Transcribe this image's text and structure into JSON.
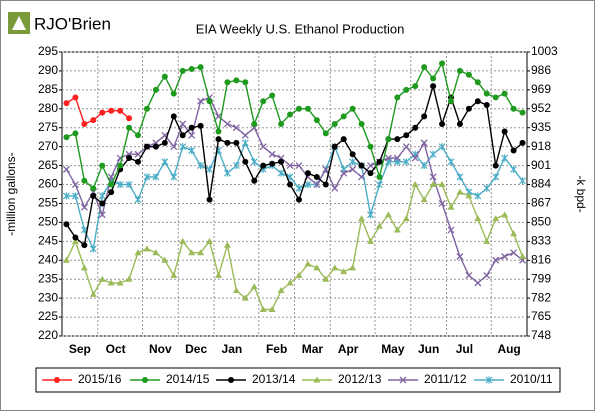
{
  "logo": "RJO'Brien",
  "chart_data": {
    "type": "line",
    "title": "EIA Weekly U.S. Ethanol Production",
    "ylabel": "-million gallons-",
    "y2label": "-k bpd-",
    "categories": [
      "Sep",
      null,
      null,
      null,
      "Oct",
      null,
      null,
      null,
      null,
      "Nov",
      null,
      null,
      null,
      "Dec",
      null,
      null,
      null,
      "Jan",
      null,
      null,
      null,
      null,
      "Feb",
      null,
      null,
      null,
      "Mar",
      null,
      null,
      null,
      "Apr",
      null,
      null,
      null,
      null,
      "May",
      null,
      null,
      null,
      "Jun",
      null,
      null,
      null,
      "Jul",
      null,
      null,
      null,
      null,
      "Aug",
      null,
      null,
      null
    ],
    "ylim": [
      220,
      295
    ],
    "yticks": [
      220,
      225,
      230,
      235,
      240,
      245,
      250,
      255,
      260,
      265,
      270,
      275,
      280,
      285,
      290,
      295
    ],
    "y2lim": [
      748,
      1003
    ],
    "y2ticks": [
      748,
      765,
      782,
      799,
      816,
      833,
      850,
      867,
      884,
      901,
      918,
      935,
      952,
      969,
      986,
      1003
    ],
    "grid": true,
    "legend": "bottom",
    "series": [
      {
        "name": "2015/16",
        "color": "#ff2020",
        "marker": "circle",
        "values": [
          281.5,
          283,
          276,
          277,
          279,
          279.5,
          279.5,
          277.5,
          null,
          null,
          null,
          null,
          null,
          null,
          null,
          null,
          null,
          null,
          null,
          null,
          null,
          null,
          null,
          null,
          null,
          null,
          null,
          null,
          null,
          null,
          null,
          null,
          null,
          null,
          null,
          null,
          null,
          null,
          null,
          null,
          null,
          null,
          null,
          null,
          null,
          null,
          null,
          null,
          null,
          null,
          null,
          null
        ]
      },
      {
        "name": "2014/15",
        "color": "#1e9a1e",
        "marker": "circle",
        "values": [
          272.5,
          273.5,
          261,
          259,
          265,
          260,
          265,
          275,
          273,
          280,
          285,
          288.5,
          284,
          290,
          290.5,
          291,
          282,
          274,
          287,
          287.5,
          287,
          276,
          282,
          283.5,
          276,
          278.5,
          280,
          280,
          277,
          273.5,
          276,
          278,
          280,
          276,
          270,
          262,
          272,
          283,
          285,
          286,
          291,
          288,
          292,
          282,
          290,
          289,
          287,
          284,
          283,
          284,
          280,
          279
        ]
      },
      {
        "name": "2013/14",
        "color": "#000000",
        "marker": "circle",
        "values": [
          249.5,
          246,
          244,
          257,
          255,
          258,
          264,
          267,
          266,
          270,
          270,
          271,
          278,
          273,
          275,
          275.5,
          256,
          272,
          271,
          271,
          266,
          261,
          265,
          265.5,
          266,
          260,
          256,
          263,
          262,
          260,
          270,
          272,
          268,
          265,
          263,
          266,
          272,
          272,
          273,
          275,
          278,
          286,
          276,
          283,
          276,
          280,
          282,
          281,
          265,
          274,
          269,
          271
        ]
      },
      {
        "name": "2012/13",
        "color": "#9bbb59",
        "marker": "triangle",
        "values": [
          240,
          245,
          238,
          231,
          235,
          234,
          234,
          235,
          242,
          243,
          242,
          240,
          236,
          245,
          242,
          242,
          245,
          236,
          244,
          232,
          230,
          233,
          227,
          227,
          232,
          234,
          236,
          239,
          238,
          235,
          238,
          237,
          238,
          251,
          245,
          249,
          252,
          248,
          251,
          260,
          256,
          260,
          260,
          254,
          258,
          257,
          251,
          245,
          251,
          252,
          247,
          241
        ]
      },
      {
        "name": "2011/12",
        "color": "#8064a2",
        "marker": "cross",
        "values": [
          264,
          260,
          254,
          258,
          252,
          262,
          267,
          268,
          268,
          270,
          271,
          273,
          270,
          276,
          273,
          282,
          283,
          278,
          276,
          275,
          273,
          275,
          270,
          268,
          267,
          265,
          265,
          262,
          260,
          264,
          259,
          263,
          264,
          262,
          265,
          266,
          267,
          267,
          270,
          267,
          271,
          262,
          255,
          248,
          241,
          236,
          234,
          236,
          240,
          241,
          242,
          240
        ]
      },
      {
        "name": "2010/11",
        "color": "#4bacc6",
        "marker": "star",
        "values": [
          257,
          257,
          248,
          243,
          257,
          261,
          260,
          260,
          256,
          262,
          262,
          266,
          262,
          270,
          269,
          265,
          264,
          269,
          263,
          265,
          271,
          266,
          264,
          265,
          263,
          262,
          259,
          260,
          260,
          264,
          270,
          264,
          266,
          265,
          252,
          260,
          266,
          266,
          266,
          268,
          265,
          268,
          270,
          266,
          262,
          258,
          257,
          259,
          262,
          267,
          264,
          261
        ]
      }
    ]
  }
}
